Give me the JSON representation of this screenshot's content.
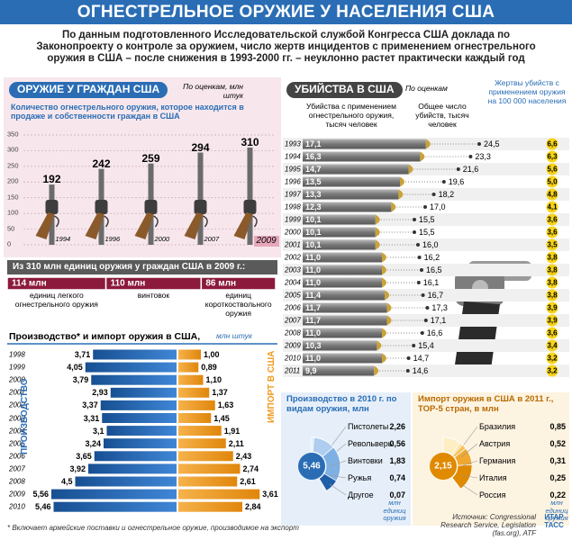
{
  "header": {
    "title": "ОГНЕСТРЕЛЬНОЕ ОРУЖИЕ У НАСЕЛЕНИЯ США",
    "intro": "По данным подготовленного Исследовательской службой Конгресса США доклада по Законопроекту о контроле за оружием, число жертв инцидентов с применением огнестрельного оружия в США – после снижения в 1993-2000 гг. – неуклонно растет практически каждый год"
  },
  "chart_data": [
    {
      "type": "bar",
      "title": "ОРУЖИЕ У ГРАЖДАН США",
      "note": "По оценкам, млн штук",
      "subtitle": "Количество огнестрельного оружия, которое находится в продаже и собственности граждан в США",
      "categories": [
        "1994",
        "1996",
        "2000",
        "2007",
        "2009"
      ],
      "values": [
        192,
        242,
        259,
        294,
        310
      ],
      "color": "#6b6b6b",
      "ylim": [
        0,
        350
      ],
      "yticks": [
        0,
        50,
        100,
        150,
        200,
        250,
        300,
        350
      ],
      "grid": true
    },
    {
      "type": "stacked_bar",
      "title": "Из 310 млн единиц оружия у граждан США в 2009 г.:",
      "categories": [
        "единиц легкого огнестрельного оружия",
        "винтовок",
        "единиц короткоствольного оружия"
      ],
      "values": [
        114,
        110,
        86
      ],
      "value_labels": [
        "114 млн",
        "110 млн",
        "86 млн"
      ],
      "color": "#8b1a3c"
    },
    {
      "type": "butterfly",
      "title": "Производство* и импорт оружия в США,",
      "unit": "млн штук",
      "categories": [
        "1998",
        "1999",
        "2000",
        "2001",
        "2002",
        "2003",
        "2004",
        "2005",
        "2006",
        "2007",
        "2008",
        "2009",
        "2010"
      ],
      "series": [
        {
          "name": "ПРОИЗВОДСТВО",
          "color": "#2a6db5",
          "values": [
            3.71,
            4.05,
            3.79,
            2.93,
            3.37,
            3.31,
            3.1,
            3.24,
            3.65,
            3.92,
            4.5,
            5.56,
            5.46
          ],
          "value_labels": [
            "3,71",
            "4,05",
            "3,79",
            "2,93",
            "3,37",
            "3,31",
            "3,1",
            "3,24",
            "3,65",
            "3,92",
            "4,5",
            "5,56",
            "5,46"
          ]
        },
        {
          "name": "ИМПОРТ В США",
          "color": "#f29a1f",
          "values": [
            1.0,
            0.89,
            1.1,
            1.37,
            1.63,
            1.45,
            1.91,
            2.11,
            2.43,
            2.74,
            2.61,
            3.61,
            2.84
          ],
          "value_labels": [
            "1,00",
            "0,89",
            "1,10",
            "1,37",
            "1,63",
            "1,45",
            "1,91",
            "2,11",
            "2,43",
            "2,74",
            "2,61",
            "3,61",
            "2,84"
          ]
        }
      ],
      "footnote": "* Включает армейские поставки и огнестрельное оружие, производимое на экспорт"
    },
    {
      "type": "bullet_bar",
      "title": "УБИЙСТВА В США",
      "note": "По оценкам",
      "categories": [
        "1993",
        "1994",
        "1995",
        "1996",
        "1997",
        "1998",
        "1999",
        "2000",
        "2001",
        "2002",
        "2003",
        "2004",
        "2005",
        "2006",
        "2007",
        "2008",
        "2009",
        "2010",
        "2011"
      ],
      "series": [
        {
          "name": "Убийства с применением огнестрельного оружия, тысяч человек",
          "color": "#8a8a8a",
          "values": [
            17.1,
            16.3,
            14.7,
            13.5,
            13.3,
            12.3,
            10.1,
            10.1,
            10.1,
            11.0,
            11.0,
            11.0,
            11.4,
            11.7,
            11.7,
            11.0,
            10.3,
            11.0,
            9.9
          ],
          "value_labels": [
            "17,1",
            "16,3",
            "14,7",
            "13,5",
            "13,3",
            "12,3",
            "10,1",
            "10,1",
            "10,1",
            "11,0",
            "11,0",
            "11,0",
            "11,4",
            "11,7",
            "11,7",
            "11,0",
            "10,3",
            "11,0",
            "9,9"
          ]
        },
        {
          "name": "Общее число убийств, тысяч человек",
          "color": "#333333",
          "values": [
            24.5,
            23.3,
            21.6,
            19.6,
            18.2,
            17.0,
            15.5,
            15.5,
            16.0,
            16.2,
            16.5,
            16.1,
            16.7,
            17.3,
            17.1,
            16.6,
            15.4,
            14.7,
            14.6
          ],
          "value_labels": [
            "24,5",
            "23,3",
            "21,6",
            "19,6",
            "18,2",
            "17,0",
            "15,5",
            "15,5",
            "16,0",
            "16,2",
            "16,5",
            "16,1",
            "16,7",
            "17,3",
            "17,1",
            "16,6",
            "15,4",
            "14,7",
            "14,6"
          ]
        },
        {
          "name": "Жертвы убийств с применением оружия на 100 000 населения",
          "color": "#f7d417",
          "values": [
            6.6,
            6.3,
            5.6,
            5.0,
            4.8,
            4.1,
            3.6,
            3.6,
            3.5,
            3.8,
            3.8,
            3.8,
            3.8,
            3.9,
            3.9,
            3.6,
            3.4,
            3.2,
            3.2
          ],
          "value_labels": [
            "6,6",
            "6,3",
            "5,6",
            "5,0",
            "4,8",
            "4,1",
            "3,6",
            "3,6",
            "3,5",
            "3,8",
            "3,8",
            "3,8",
            "3,8",
            "3,9",
            "3,9",
            "3,6",
            "3,4",
            "3,2",
            "3,2"
          ]
        }
      ]
    },
    {
      "type": "donut",
      "title": "Производство в 2010 г. по видам оружия, млн",
      "total": 5.46,
      "total_label": "5,46",
      "unit": "млн единиц оружия",
      "categories": [
        "Пистолеты",
        "Револьверы",
        "Винтовки",
        "Ружья",
        "Другое"
      ],
      "values": [
        2.26,
        0.56,
        1.83,
        0.74,
        0.07
      ],
      "value_labels": [
        "2,26",
        "0,56",
        "1,83",
        "0,74",
        "0,07"
      ],
      "colors": [
        "#1f5fa8",
        "#4d8fd6",
        "#7fb0e4",
        "#aecdef",
        "#d9e8f7"
      ]
    },
    {
      "type": "donut",
      "title": "Импорт оружия в США в 2011 г., ТОР-5 стран, в млн",
      "total": 2.15,
      "total_label": "2,15",
      "unit": "млн единиц оружия",
      "categories": [
        "Бразилия",
        "Австрия",
        "Германия",
        "Италия",
        "Россия"
      ],
      "values": [
        0.85,
        0.52,
        0.31,
        0.25,
        0.22
      ],
      "value_labels": [
        "0,85",
        "0,52",
        "0,31",
        "0,25",
        "0,22"
      ],
      "colors": [
        "#e08a00",
        "#f0a830",
        "#f6c35c",
        "#fad98e",
        "#fdeec4"
      ]
    }
  ],
  "source": "Источник: Congressional Research Service, Legislation (fas.org), ATF",
  "logo": "ИТАР ТАСС"
}
